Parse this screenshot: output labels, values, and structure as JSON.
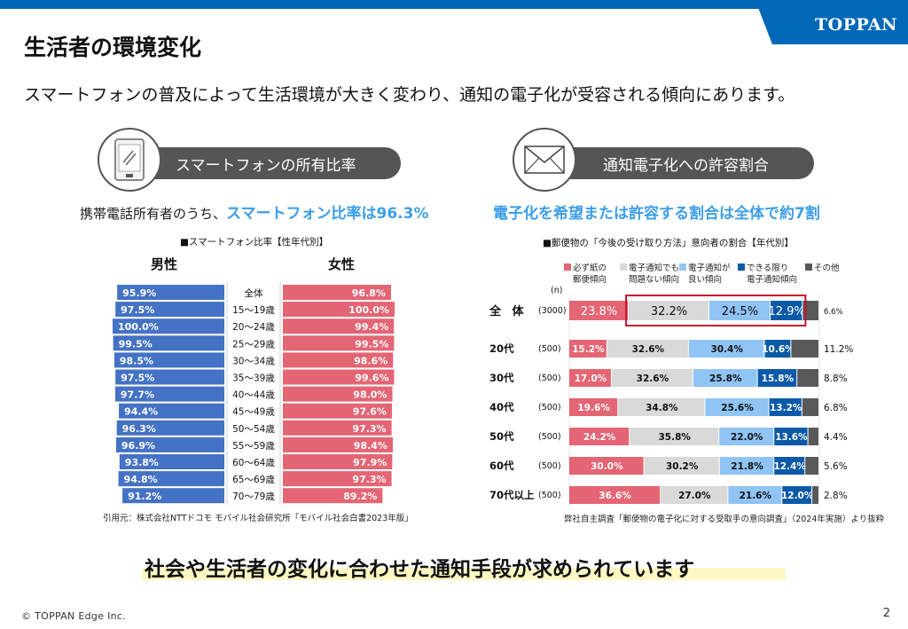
{
  "brand": {
    "logo": "TOPPAN",
    "color": "#0068b7"
  },
  "page": {
    "title": "生活者の環境変化",
    "lead": "スマートフォンの普及によって生活環境が大きく変わり、通知の電子化が受容される傾向にあります。",
    "conclusion": "社会や生活者の変化に合わせた通知手段が求められています",
    "footer": "© TOPPAN Edge Inc.",
    "page_number": "2"
  },
  "left_panel": {
    "icon": "smartphone-icon",
    "heading": "スマートフォンの所有比率",
    "summary_prefix": "携帯電話所有者のうち、",
    "summary_highlight": "スマートフォン比率は96.3%",
    "source": "引用元：株式会社NTTドコモ モバイル社会研究所「モバイル社会白書2023年版」"
  },
  "right_panel": {
    "icon": "envelope-icon",
    "heading": "通知電子化への許容割合",
    "summary_highlight": "電子化を希望または許容する割合は全体で約7割",
    "n_header": "(n)",
    "source": "弊社自主調査「郵便物の電子化に対する受取手の意向調査」（2024年実施）より抜粋"
  },
  "chart_data": [
    {
      "type": "bar",
      "orientation": "horizontal-butterfly",
      "title": "■スマートフォン比率【性年代別】",
      "unit": "%",
      "xlim": [
        0,
        100
      ],
      "categories": [
        "全体",
        "15〜19歳",
        "20〜24歳",
        "25〜29歳",
        "30〜34歳",
        "35〜39歳",
        "40〜44歳",
        "45〜49歳",
        "50〜54歳",
        "55〜59歳",
        "60〜64歳",
        "65〜69歳",
        "70〜79歳"
      ],
      "series": [
        {
          "name": "男性",
          "color": "#4472c4",
          "side": "left",
          "values": [
            95.9,
            97.5,
            100.0,
            99.5,
            98.5,
            97.5,
            97.7,
            94.4,
            96.3,
            96.9,
            93.8,
            94.8,
            91.2
          ],
          "labels": [
            "95.9%",
            "97.5%",
            "100.0%",
            "99.5%",
            "98.5%",
            "97.5%",
            "97.7%",
            "94.4%",
            "96.3%",
            "96.9%",
            "93.8%",
            "94.8%",
            "91.2%"
          ]
        },
        {
          "name": "女性",
          "color": "#e46574",
          "side": "right",
          "values": [
            96.8,
            100.0,
            99.4,
            99.5,
            98.6,
            99.6,
            98.0,
            97.6,
            97.3,
            98.4,
            97.9,
            97.3,
            89.2
          ],
          "labels": [
            "96.8%",
            "100.0%",
            "99.4%",
            "99.5%",
            "98.6%",
            "99.6%",
            "98.0%",
            "97.6%",
            "97.3%",
            "98.4%",
            "97.9%",
            "97.3%",
            "89.2%"
          ]
        }
      ]
    },
    {
      "type": "bar",
      "orientation": "horizontal-stacked-100",
      "title": "■郵便物の「今後の受け取り方法」意向者の割合【年代別】",
      "unit": "%",
      "xlim": [
        0,
        100
      ],
      "categories": [
        "全 体",
        "20代",
        "30代",
        "40代",
        "50代",
        "60代",
        "70代以上"
      ],
      "n": [
        "(3000)",
        "(500)",
        "(500)",
        "(500)",
        "(500)",
        "(500)",
        "(500)"
      ],
      "highlight_box": "全体の電子通知でも問題ない傾向〜できる限り電子通知傾向",
      "highlight_color": "#c8102e",
      "series": [
        {
          "name": "必ず紙の郵便傾向",
          "legend_lines": [
            "必ず紙の",
            "郵便傾向"
          ],
          "color": "#e46574",
          "text_color": "#ffffff",
          "values": [
            23.8,
            15.2,
            17.0,
            19.6,
            24.2,
            30.0,
            36.6
          ],
          "labels": [
            "23.8%",
            "15.2%",
            "17.0%",
            "19.6%",
            "24.2%",
            "30.0%",
            "36.6%"
          ]
        },
        {
          "name": "電子通知でも問題ない傾向",
          "legend_lines": [
            "電子通知でも",
            "問題ない傾向"
          ],
          "color": "#d9d9d9",
          "text_color": "#111111",
          "values": [
            32.2,
            32.6,
            32.6,
            34.8,
            35.8,
            30.2,
            27.0
          ],
          "labels": [
            "32.2%",
            "32.6%",
            "32.6%",
            "34.8%",
            "35.8%",
            "30.2%",
            "27.0%"
          ]
        },
        {
          "name": "電子通知が良い傾向",
          "legend_lines": [
            "電子通知が",
            "良い傾向"
          ],
          "color": "#8fc4f5",
          "text_color": "#111111",
          "values": [
            24.5,
            30.4,
            25.8,
            25.6,
            22.0,
            21.8,
            21.6
          ],
          "labels": [
            "24.5%",
            "30.4%",
            "25.8%",
            "25.6%",
            "22.0%",
            "21.8%",
            "21.6%"
          ]
        },
        {
          "name": "できる限り電子通知傾向",
          "legend_lines": [
            "できる限り",
            "電子通知傾向"
          ],
          "color": "#0b5aa8",
          "text_color": "#ffffff",
          "values": [
            12.9,
            10.6,
            15.8,
            13.2,
            13.6,
            12.4,
            12.0
          ],
          "labels": [
            "12.9%",
            "10.6%",
            "15.8%",
            "13.2%",
            "13.6%",
            "12.4%",
            "12.0%"
          ]
        },
        {
          "name": "その他",
          "legend_lines": [
            "その他",
            ""
          ],
          "color": "#595959",
          "text_color": "#111111",
          "label_outside": true,
          "values": [
            6.6,
            11.2,
            8.8,
            6.8,
            4.4,
            5.6,
            2.8
          ],
          "labels": [
            "6.6%",
            "11.2%",
            "8.8%",
            "6.8%",
            "4.4%",
            "5.6%",
            "2.8%"
          ]
        }
      ]
    }
  ]
}
